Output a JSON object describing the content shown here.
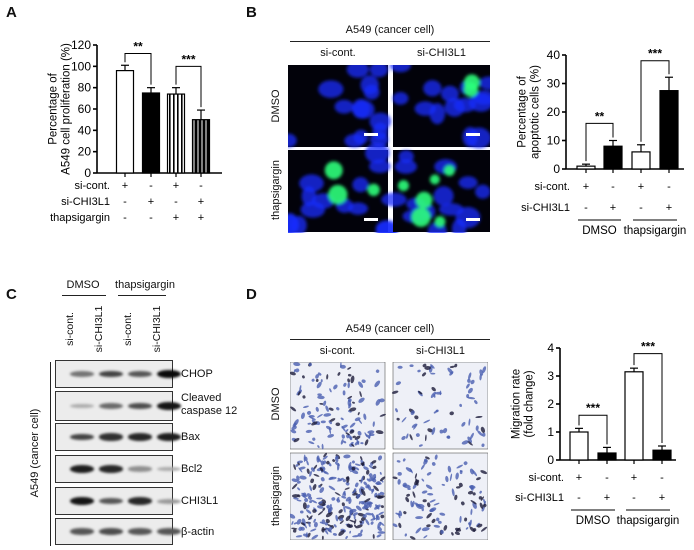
{
  "panels": {
    "A": {
      "label": "A",
      "chart_data": {
        "type": "bar",
        "ylabel": "Percentage of\nA549 cell proliferation (%)",
        "ylabel_lines": [
          "Percentage of",
          "A549 cell proliferation (%)"
        ],
        "ylim": [
          0,
          120
        ],
        "yticks": [
          0,
          20,
          40,
          60,
          80,
          100,
          120
        ],
        "values": [
          96,
          75,
          74,
          50
        ],
        "errors": [
          5,
          5,
          6,
          9
        ],
        "fills": [
          "white",
          "black",
          "white-striped",
          "black-striped"
        ],
        "significance": [
          {
            "from": 0,
            "to": 1,
            "level": 112,
            "label": "**"
          },
          {
            "from": 2,
            "to": 3,
            "level": 100,
            "label": "***"
          }
        ],
        "treatments": [
          {
            "label": "si-cont.",
            "signs": [
              "+",
              "-",
              "+",
              "-"
            ]
          },
          {
            "label": "si-CHI3L1",
            "signs": [
              "-",
              "+",
              "-",
              "+"
            ]
          },
          {
            "label": "thapsigargin",
            "signs": [
              "-",
              "-",
              "+",
              "+"
            ]
          }
        ]
      }
    },
    "B": {
      "label": "B",
      "title": "A549 (cancer cell)",
      "columns": [
        "si-cont.",
        "si-CHI3L1"
      ],
      "rows": [
        "DMSO",
        "thapsigargin"
      ],
      "stain_colors": {
        "nuclei": "#1a2cff",
        "apoptotic": "#2cff7a"
      },
      "chart_data": {
        "type": "bar",
        "ylabel_lines": [
          "Percentage of",
          "apoptotic cells  (%)"
        ],
        "ylim": [
          0,
          40
        ],
        "yticks": [
          0,
          10,
          20,
          30,
          40
        ],
        "values": [
          1,
          8,
          6,
          27.5
        ],
        "errors": [
          0.7,
          2,
          2.5,
          4.7
        ],
        "fills": [
          "white",
          "black",
          "white",
          "black"
        ],
        "significance": [
          {
            "from": 0,
            "to": 1,
            "level": 16,
            "label": "**"
          },
          {
            "from": 2,
            "to": 3,
            "level": 38,
            "label": "***"
          }
        ],
        "treatments": [
          {
            "label": "si-cont.",
            "signs": [
              "+",
              "-",
              "+",
              "-"
            ]
          },
          {
            "label": "si-CHI3L1",
            "signs": [
              "-",
              "+",
              "-",
              "+"
            ]
          }
        ],
        "groups": [
          "DMSO",
          "thapsigargin"
        ]
      }
    },
    "C": {
      "label": "C",
      "groups": [
        "DMSO",
        "thapsigargin"
      ],
      "lanes": [
        "si-cont.",
        "si-CHI3L1",
        "si-cont.",
        "si-CHI3L1"
      ],
      "side_label": "A549 (cancer cell)",
      "blots": [
        {
          "name": "CHOP",
          "intensity": [
            0.45,
            0.7,
            0.6,
            1.0
          ]
        },
        {
          "name": "Cleaved caspase 12",
          "intensity": [
            0.15,
            0.5,
            0.65,
            0.95
          ]
        },
        {
          "name": "Bax",
          "intensity": [
            0.7,
            0.8,
            0.85,
            0.9
          ]
        },
        {
          "name": "Bcl2",
          "intensity": [
            0.9,
            0.85,
            0.3,
            0.15
          ]
        },
        {
          "name": "CHI3L1",
          "intensity": [
            0.95,
            0.6,
            0.85,
            0.25
          ]
        },
        {
          "name": "β-actin",
          "intensity": [
            0.6,
            0.65,
            0.6,
            0.6
          ]
        }
      ]
    },
    "D": {
      "label": "D",
      "title": "A549 (cancer cell)",
      "columns": [
        "si-cont.",
        "si-CHI3L1"
      ],
      "rows": [
        "DMSO",
        "thapsigargin"
      ],
      "chart_data": {
        "type": "bar",
        "ylabel_lines": [
          "Migration rate",
          "(fold change)"
        ],
        "ylim": [
          0,
          4
        ],
        "yticks": [
          0,
          1,
          2,
          3,
          4
        ],
        "values": [
          1.0,
          0.25,
          3.15,
          0.35
        ],
        "errors": [
          0.13,
          0.2,
          0.13,
          0.15
        ],
        "fills": [
          "white",
          "black",
          "white",
          "black"
        ],
        "significance": [
          {
            "from": 0,
            "to": 1,
            "level": 1.6,
            "label": "***"
          },
          {
            "from": 2,
            "to": 3,
            "level": 3.8,
            "label": "***"
          }
        ],
        "treatments": [
          {
            "label": "si-cont.",
            "signs": [
              "+",
              "-",
              "+",
              "-"
            ]
          },
          {
            "label": "si-CHI3L1",
            "signs": [
              "-",
              "+",
              "-",
              "+"
            ]
          }
        ],
        "groups": [
          "DMSO",
          "thapsigargin"
        ]
      }
    }
  }
}
